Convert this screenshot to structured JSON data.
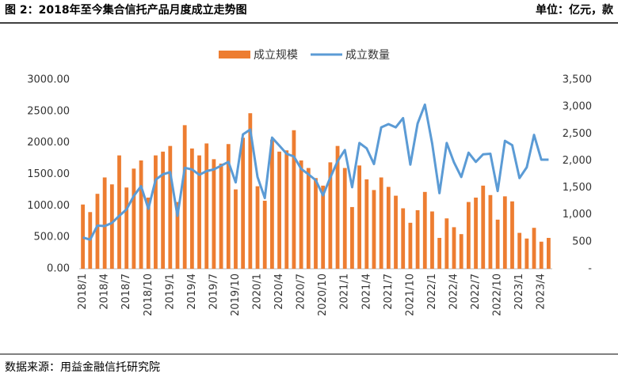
{
  "header": {
    "title": "图 2：2018年至今集合信托产品月度成立走势图",
    "unit": "单位：亿元，款"
  },
  "footer": {
    "source": "数据来源：用益金融信托研究院"
  },
  "chart_data": {
    "type": "combo",
    "categories": [
      "2018/1",
      null,
      null,
      "2018/4",
      null,
      null,
      "2018/7",
      null,
      null,
      "2018/10",
      null,
      null,
      "2019/1",
      null,
      null,
      "2019/4",
      null,
      null,
      "2019/7",
      null,
      null,
      "2019/10",
      null,
      null,
      "2020/1",
      null,
      null,
      "2020/4",
      null,
      null,
      "2020/7",
      null,
      null,
      "2020/10",
      null,
      null,
      "2021/1",
      null,
      null,
      "2021/4",
      null,
      null,
      "2021/7",
      null,
      null,
      "2021/10",
      null,
      null,
      "2022/1",
      null,
      null,
      "2022/4",
      null,
      null,
      "2022/7",
      null,
      null,
      "2022/10",
      null,
      null,
      "2023/1",
      null,
      null,
      "2023/4",
      null
    ],
    "series": [
      {
        "name": "成立规模",
        "type": "bar",
        "color": "#ED7D31",
        "axis": "y",
        "values": [
          1020,
          900,
          1190,
          1450,
          1340,
          1800,
          1290,
          1590,
          1720,
          1130,
          1800,
          1860,
          1950,
          1060,
          2280,
          1910,
          1800,
          1990,
          1740,
          1670,
          1980,
          1260,
          2080,
          2470,
          1310,
          1080,
          2050,
          1860,
          1880,
          2200,
          1720,
          1600,
          1440,
          1320,
          1690,
          1950,
          1600,
          980,
          1640,
          1420,
          1250,
          1450,
          1300,
          1160,
          960,
          730,
          930,
          1220,
          910,
          490,
          800,
          660,
          550,
          1060,
          1130,
          1320,
          1170,
          780,
          1150,
          1070,
          570,
          480,
          650,
          430,
          490
        ]
      },
      {
        "name": "成立数量",
        "type": "line",
        "color": "#5B9BD5",
        "axis": "y2",
        "values": [
          580,
          540,
          800,
          790,
          850,
          980,
          1100,
          1350,
          1530,
          1110,
          1650,
          1750,
          1790,
          980,
          1870,
          1840,
          1740,
          1810,
          1840,
          1910,
          1980,
          1600,
          2490,
          2580,
          1700,
          1310,
          2430,
          2280,
          2130,
          2080,
          1850,
          1750,
          1640,
          1360,
          1690,
          1990,
          2200,
          1510,
          2330,
          2230,
          1940,
          2620,
          2680,
          2620,
          2790,
          1930,
          2690,
          3040,
          2320,
          1400,
          2330,
          1970,
          1700,
          2150,
          1980,
          2120,
          2130,
          1440,
          2370,
          2290,
          1680,
          1880,
          2480,
          2020,
          2020
        ]
      }
    ],
    "ylim": [
      0,
      3000
    ],
    "yticks": [
      {
        "value": 0,
        "label": "0.00"
      },
      {
        "value": 500,
        "label": "500.00"
      },
      {
        "value": 1000,
        "label": "1000.00"
      },
      {
        "value": 1500,
        "label": "1500.00"
      },
      {
        "value": 2000,
        "label": "2000.00"
      },
      {
        "value": 2500,
        "label": "2500.00"
      },
      {
        "value": 3000,
        "label": "3000.00"
      }
    ],
    "y2lim": [
      0,
      3500
    ],
    "y2ticks": [
      {
        "value": 0,
        "label": "-"
      },
      500,
      {
        "value": 1000,
        "label": "1,000"
      },
      {
        "value": 1500,
        "label": "1,500"
      },
      {
        "value": 2000,
        "label": "2,000"
      },
      {
        "value": 2500,
        "label": "2,500"
      },
      {
        "value": 3000,
        "label": "3,000"
      },
      {
        "value": 3500,
        "label": "3,500"
      }
    ],
    "grid": false,
    "legend": "top"
  }
}
